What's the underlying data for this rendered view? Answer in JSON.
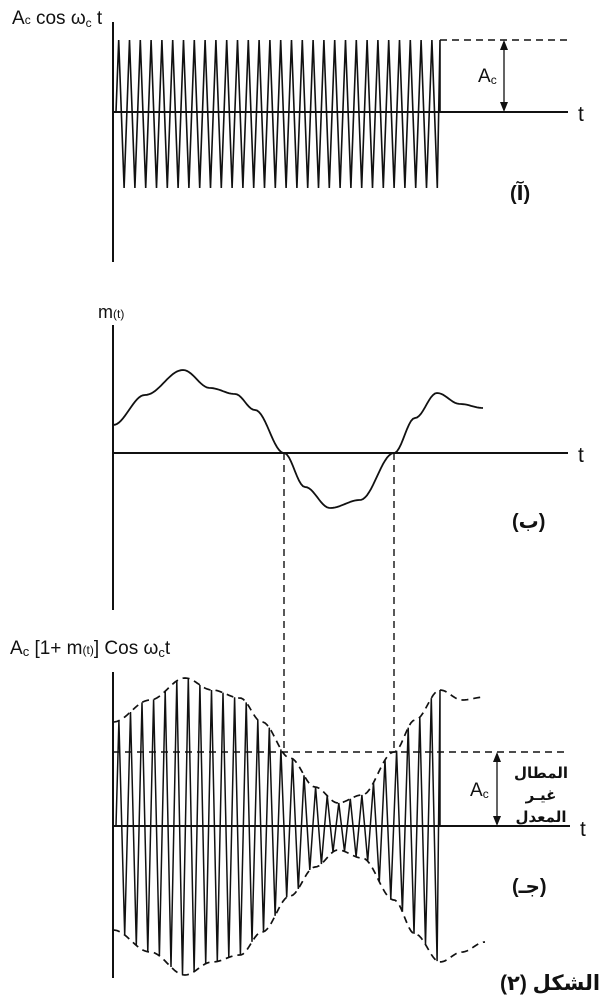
{
  "panel_a": {
    "title_pre": "A",
    "title_sub": "c",
    "title_cos": " cos ",
    "title_omega": "ω",
    "title_sub2": "c",
    "title_t": " t",
    "amplitude_label": "A",
    "amplitude_sub": "c",
    "time_label": "t",
    "panel_tag": "(آ)"
  },
  "panel_b": {
    "signal_label": "m",
    "signal_arg": "(t)",
    "time_label": "t",
    "panel_tag": "(ب)"
  },
  "panel_c": {
    "title_pre": "A",
    "title_sub": "c",
    "title_bracket": " [1+ m",
    "title_arg": "(t)",
    "title_close": "] Cos ",
    "title_omega": "ω",
    "title_sub2": "c",
    "title_t": "t",
    "amplitude_label": "A",
    "amplitude_sub": "c",
    "time_label": "t",
    "note_line1": "المطال",
    "note_line2": "غيـر",
    "note_line3": "المعدل",
    "panel_tag": "(جـ)"
  },
  "figure_caption": "الشكل (٢)"
}
